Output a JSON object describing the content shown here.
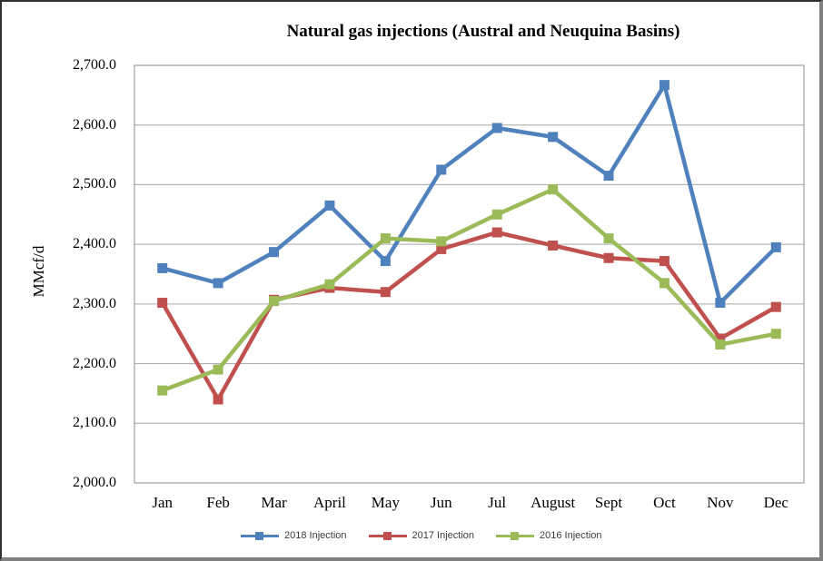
{
  "window": {
    "background": "#ffffff",
    "outer_border_dark": "#2f2f2f",
    "outer_border_light": "#7f7f7f"
  },
  "chart_data": {
    "type": "line",
    "title": "Natural gas injections (Austral and Neuquina Basins)",
    "xlabel": "",
    "ylabel": "MMcf/d",
    "categories": [
      "Jan",
      "Feb",
      "Mar",
      "April",
      "May",
      "Jun",
      "Jul",
      "August",
      "Sept",
      "Oct",
      "Nov",
      "Dec"
    ],
    "series": [
      {
        "name": "2018 Injection",
        "color": "#4F81BD",
        "values": [
          2360,
          2335,
          2387,
          2465,
          2372,
          2525,
          2595,
          2580,
          2515,
          2667,
          2302,
          2395
        ]
      },
      {
        "name": "2017 Injection",
        "color": "#C0504D",
        "values": [
          2302,
          2140,
          2307,
          2327,
          2320,
          2392,
          2420,
          2398,
          2377,
          2372,
          2242,
          2295
        ]
      },
      {
        "name": "2016 Injection",
        "color": "#9BBB59",
        "values": [
          2155,
          2190,
          2305,
          2333,
          2410,
          2405,
          2450,
          2492,
          2410,
          2335,
          2232,
          2250
        ]
      }
    ],
    "ylim": [
      2000,
      2700
    ],
    "ytick_step": 100,
    "ytick_labels": [
      "2,000.0",
      "2,100.0",
      "2,200.0",
      "2,300.0",
      "2,400.0",
      "2,500.0",
      "2,600.0",
      "2,700.0"
    ],
    "grid": "horizontal",
    "gridline_color": "#A6A6A6",
    "frame_color": "#8C8C8C",
    "marker": "square",
    "legend_position": "bottom"
  }
}
